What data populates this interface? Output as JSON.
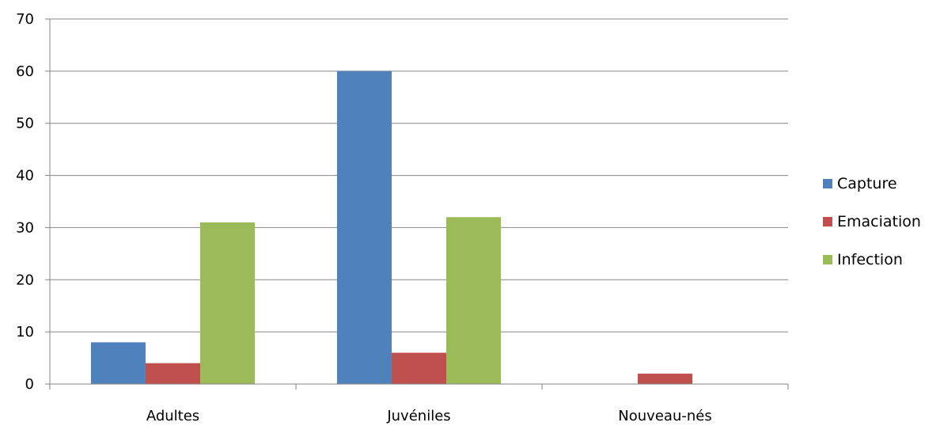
{
  "chart_data": {
    "type": "bar",
    "categories": [
      "Adultes",
      "Juvéniles",
      "Nouveau-nés"
    ],
    "series": [
      {
        "name": "Capture",
        "values": [
          8,
          60,
          0
        ],
        "color": "#4F81BD"
      },
      {
        "name": "Emaciation",
        "values": [
          4,
          6,
          2
        ],
        "color": "#C0504D"
      },
      {
        "name": "Infection",
        "values": [
          31,
          32,
          0
        ],
        "color": "#9BBB59"
      }
    ],
    "title": "",
    "xlabel": "",
    "ylabel": "",
    "ylim": [
      0,
      70
    ],
    "yticks": [
      0,
      10,
      20,
      30,
      40,
      50,
      60,
      70
    ],
    "grid": true,
    "legend_position": "right"
  }
}
